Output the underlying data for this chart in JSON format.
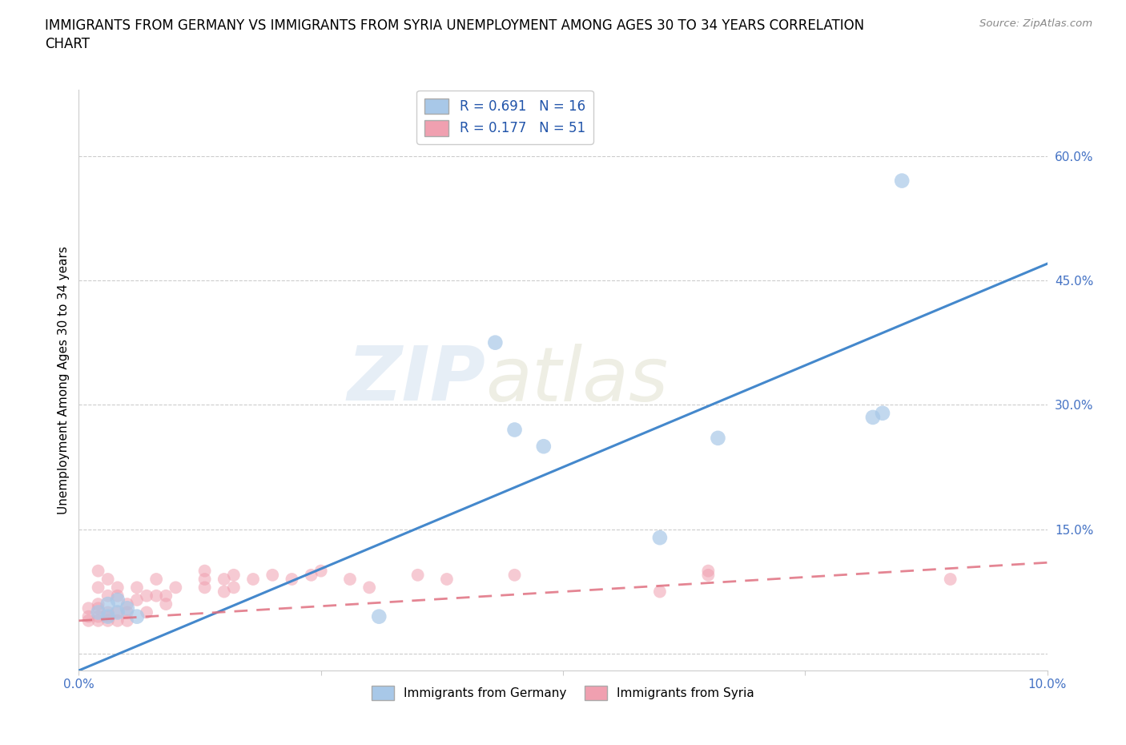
{
  "title_line1": "IMMIGRANTS FROM GERMANY VS IMMIGRANTS FROM SYRIA UNEMPLOYMENT AMONG AGES 30 TO 34 YEARS CORRELATION",
  "title_line2": "CHART",
  "source": "Source: ZipAtlas.com",
  "ylabel": "Unemployment Among Ages 30 to 34 years",
  "xlabel_germany": "Immigrants from Germany",
  "xlabel_syria": "Immigrants from Syria",
  "germany_R": 0.691,
  "germany_N": 16,
  "syria_R": 0.177,
  "syria_N": 51,
  "xlim": [
    0.0,
    0.1
  ],
  "ylim": [
    -0.02,
    0.68
  ],
  "xtick_positions": [
    0.0,
    0.025,
    0.05,
    0.075,
    0.1
  ],
  "xtick_labels": [
    "0.0%",
    "",
    "",
    "",
    "10.0%"
  ],
  "ytick_positions": [
    0.0,
    0.15,
    0.3,
    0.45,
    0.6
  ],
  "ytick_labels": [
    "",
    "15.0%",
    "30.0%",
    "45.0%",
    "60.0%"
  ],
  "germany_color": "#a8c8e8",
  "germany_line_color": "#4488cc",
  "syria_color": "#f0a0b0",
  "syria_line_color": "#e07080",
  "background_color": "#ffffff",
  "watermark_zip": "ZIP",
  "watermark_atlas": "atlas",
  "germany_x": [
    0.002,
    0.003,
    0.003,
    0.004,
    0.004,
    0.005,
    0.006,
    0.031,
    0.043,
    0.045,
    0.048,
    0.06,
    0.066,
    0.082,
    0.083,
    0.085
  ],
  "germany_y": [
    0.05,
    0.045,
    0.06,
    0.05,
    0.065,
    0.055,
    0.045,
    0.045,
    0.375,
    0.27,
    0.25,
    0.14,
    0.26,
    0.285,
    0.29,
    0.57
  ],
  "syria_x": [
    0.001,
    0.001,
    0.001,
    0.002,
    0.002,
    0.002,
    0.002,
    0.002,
    0.002,
    0.003,
    0.003,
    0.003,
    0.003,
    0.003,
    0.004,
    0.004,
    0.004,
    0.004,
    0.005,
    0.005,
    0.005,
    0.006,
    0.006,
    0.007,
    0.007,
    0.008,
    0.008,
    0.009,
    0.009,
    0.01,
    0.013,
    0.013,
    0.013,
    0.015,
    0.015,
    0.016,
    0.016,
    0.018,
    0.02,
    0.022,
    0.024,
    0.025,
    0.028,
    0.03,
    0.035,
    0.038,
    0.045,
    0.06,
    0.065,
    0.065,
    0.09
  ],
  "syria_y": [
    0.04,
    0.045,
    0.055,
    0.04,
    0.045,
    0.055,
    0.06,
    0.08,
    0.1,
    0.04,
    0.045,
    0.05,
    0.07,
    0.09,
    0.04,
    0.05,
    0.07,
    0.08,
    0.04,
    0.05,
    0.06,
    0.065,
    0.08,
    0.05,
    0.07,
    0.07,
    0.09,
    0.06,
    0.07,
    0.08,
    0.08,
    0.09,
    0.1,
    0.075,
    0.09,
    0.095,
    0.08,
    0.09,
    0.095,
    0.09,
    0.095,
    0.1,
    0.09,
    0.08,
    0.095,
    0.09,
    0.095,
    0.075,
    0.095,
    0.1,
    0.09
  ],
  "title_fontsize": 12,
  "axis_label_fontsize": 11,
  "tick_fontsize": 11,
  "legend_fontsize": 12
}
